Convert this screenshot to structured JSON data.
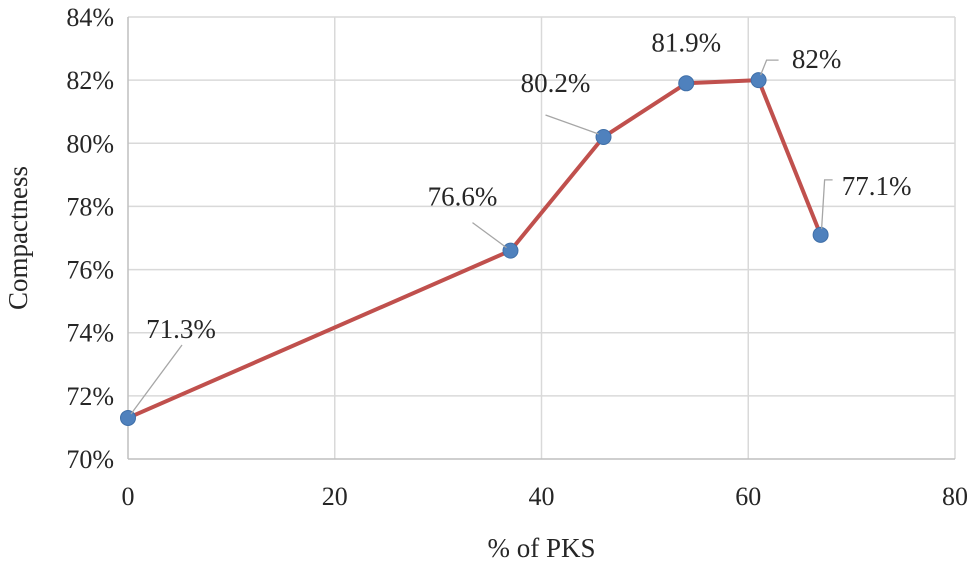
{
  "chart_data": {
    "type": "line",
    "title": "",
    "xlabel": "% of PKS",
    "ylabel": "Compactness",
    "xlim": [
      0,
      80
    ],
    "ylim": [
      70,
      84
    ],
    "x_ticks": [
      0,
      20,
      40,
      60,
      80
    ],
    "y_ticks": [
      70,
      72,
      74,
      76,
      78,
      80,
      82,
      84
    ],
    "y_tick_suffix": "%",
    "grid": true,
    "series": [
      {
        "x": [
          0,
          37,
          46,
          54,
          61,
          67
        ],
        "values": [
          71.3,
          76.6,
          80.2,
          81.9,
          82.0,
          77.1
        ],
        "labels": [
          "71.3%",
          "76.6%",
          "80.2%",
          "81.9%",
          "82%",
          "77.1%"
        ],
        "line_color": "#c0504d",
        "marker_color": "#4f81bd"
      }
    ]
  }
}
